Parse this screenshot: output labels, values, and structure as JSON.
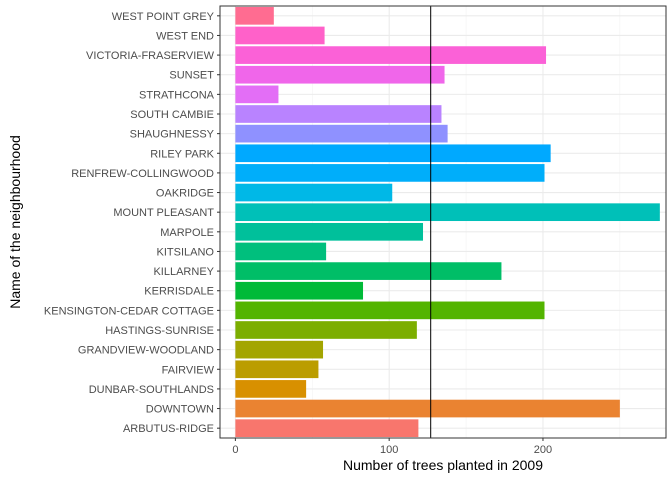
{
  "chart_data": {
    "type": "bar",
    "orientation": "horizontal",
    "xlabel": "Number of trees planted in 2009",
    "ylabel": "Name of the neighbourhood",
    "xlim": [
      -10,
      280
    ],
    "x_ticks": [
      0,
      100,
      200
    ],
    "grid": true,
    "legend": "none",
    "reference_line_x": 127,
    "categories": [
      "WEST POINT GREY",
      "WEST END",
      "VICTORIA-FRASERVIEW",
      "SUNSET",
      "STRATHCONA",
      "SOUTH CAMBIE",
      "SHAUGHNESSY",
      "RILEY PARK",
      "RENFREW-COLLINGWOOD",
      "OAKRIDGE",
      "MOUNT PLEASANT",
      "MARPOLE",
      "KITSILANO",
      "KILLARNEY",
      "KERRISDALE",
      "KENSINGTON-CEDAR COTTAGE",
      "HASTINGS-SUNRISE",
      "GRANDVIEW-WOODLAND",
      "FAIRVIEW",
      "DUNBAR-SOUTHLANDS",
      "DOWNTOWN",
      "ARBUTUS-RIDGE"
    ],
    "values": [
      25,
      58,
      202,
      136,
      28,
      134,
      138,
      205,
      201,
      102,
      276,
      122,
      59,
      173,
      83,
      201,
      118,
      57,
      54,
      46,
      250,
      119
    ],
    "colors": [
      "#FF6C91",
      "#FF61C9",
      "#FB61D7",
      "#F066EA",
      "#E36EF6",
      "#B983FF",
      "#8F91FF",
      "#00A9FF",
      "#00AEFA",
      "#00B8E7",
      "#00C0B8",
      "#00C09B",
      "#00BF7D",
      "#00BE67",
      "#00BA38",
      "#53B400",
      "#7CAE00",
      "#A3A500",
      "#BB9D00",
      "#D89000",
      "#EA8331",
      "#F8766D"
    ]
  }
}
